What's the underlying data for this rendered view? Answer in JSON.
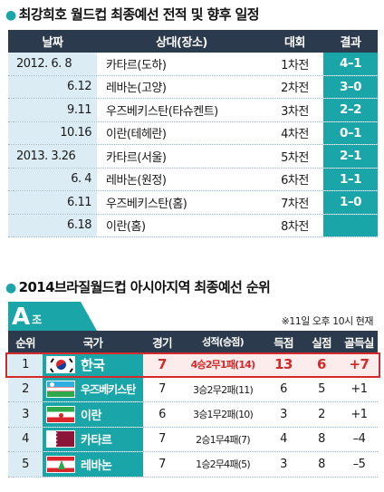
{
  "section1": {
    "title": "최강희호 월드컵 최종예선 전적 및 향후 일정",
    "headers": {
      "date": "날짜",
      "opponent": "상대(장소)",
      "round": "대회",
      "result": "결과"
    },
    "rows": [
      {
        "date": "2012.  6.  8",
        "opponent": "카타르(도하)",
        "round": "1차전",
        "result": "4–1"
      },
      {
        "date": "6.12",
        "opponent": "레바논(고양)",
        "round": "2차전",
        "result": "3–0"
      },
      {
        "date": "9.11",
        "opponent": "우즈베키스탄(타슈켄트)",
        "round": "3차전",
        "result": "2–2"
      },
      {
        "date": "10.16",
        "opponent": "이란(테헤란)",
        "round": "4차전",
        "result": "0–1"
      },
      {
        "date": "2013.  3.26",
        "opponent": "카타르(서울)",
        "round": "5차전",
        "result": "2–1"
      },
      {
        "date": "6.  4",
        "opponent": "레바논(원정)",
        "round": "6차전",
        "result": "1–1"
      },
      {
        "date": "6.11",
        "opponent": "우즈베키스탄(홈)",
        "round": "7차전",
        "result": "1–0"
      },
      {
        "date": "6.18",
        "opponent": "이란(홈)",
        "round": "8차전",
        "result": ""
      }
    ]
  },
  "section2": {
    "title": "2014브라질월드컵 아시아지역 최종예선 순위",
    "group_letter": "A",
    "group_suffix": "조",
    "note": "※11일 오후 10시 현재",
    "headers": {
      "rank": "순위",
      "country": "국가",
      "games": "경기",
      "record": "성적(승점)",
      "gf": "득점",
      "ga": "실점",
      "gd": "골득실"
    },
    "rows": [
      {
        "rank": "1",
        "flag": "korea-flag",
        "country": "한국",
        "games": "7",
        "record": "4승2무1패(14)",
        "gf": "13",
        "ga": "6",
        "gd": "+7"
      },
      {
        "rank": "2",
        "flag": "uzbekistan-flag",
        "country": "우즈베키스탄",
        "games": "7",
        "record": "3승2무2패(11)",
        "gf": "6",
        "ga": "5",
        "gd": "+1"
      },
      {
        "rank": "3",
        "flag": "iran-flag",
        "country": "이란",
        "games": "6",
        "record": "3승1무2패(10)",
        "gf": "3",
        "ga": "2",
        "gd": "+1"
      },
      {
        "rank": "4",
        "flag": "qatar-flag",
        "country": "카타르",
        "games": "7",
        "record": "2승1무4패(7)",
        "gf": "4",
        "ga": "8",
        "gd": "–4"
      },
      {
        "rank": "5",
        "flag": "lebanon-flag",
        "country": "레바논",
        "games": "7",
        "record": "1승2무4패(5)",
        "gf": "3",
        "ga": "8",
        "gd": "–5"
      }
    ]
  },
  "colors": {
    "header": "#2c3a4e",
    "accent": "#1aa5a8",
    "date_bg": "#dcecf4",
    "highlight": "#d42a2a"
  }
}
